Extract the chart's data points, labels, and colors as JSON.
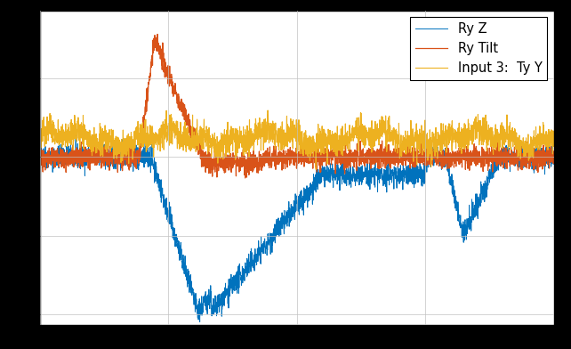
{
  "title": "",
  "legend_entries": [
    "Ry Z",
    "Ry Tilt",
    "Input 3:  Ty Y"
  ],
  "colors": {
    "ry_z": "#0072BD",
    "ry_tilt": "#D95319",
    "input3": "#EDB120"
  },
  "background_color": "#ffffff",
  "outer_bg": "#000000",
  "grid_color": "#b0b0b0",
  "n_points": 3000,
  "seed": 42,
  "figsize": [
    6.42,
    3.92
  ],
  "dpi": 100,
  "xlim": [
    0,
    3000
  ],
  "ylim": [
    -1.6,
    1.4
  ],
  "legend_loc": "upper right",
  "font": "DejaVu Sans"
}
